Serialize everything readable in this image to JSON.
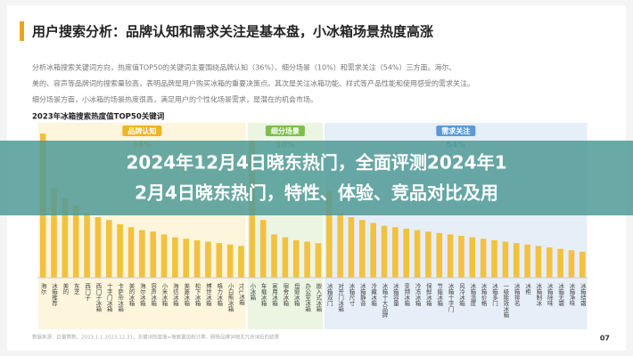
{
  "header": {
    "title": "用户搜索分析：品牌认知和需求关注是基本盘，小冰箱场景热度高涨"
  },
  "paragraph": {
    "lines": [
      "分析冰箱搜索关键词方向，热度值TOP50的关键词主要围绕品牌认知（36%）、细分场景（10%）和需求关注（54%）三方面。海尔、",
      "美的、容声等品牌词的搜索量较高，表明品牌是用户购买冰箱的重要决策点。其次是关注冰箱功能、样式等产品性能和使用感受的需求关注。",
      "细分场景方面，小冰箱的场景热度很高，满足用户的个性化场景需求，是潜在的机会市场。"
    ]
  },
  "chart_data": {
    "type": "bar",
    "title": "2023年冰箱搜索热度值TOP50关键词",
    "bar_color": "#f3c140",
    "groups": [
      {
        "name": "品牌认知",
        "value": 36,
        "value_label": "36%",
        "color": "#f0b429",
        "panel": "#fdf5dc",
        "categories": [
          "海尔",
          "冰箱推荐",
          "美的",
          "东芝",
          "西门子",
          "西门子冰箱",
          "十字门冰箱",
          "卡萨帝冰箱",
          "美的冰箱",
          "海尔冰箱",
          "容声冰箱",
          "小米冰箱",
          "海信冰箱",
          "美菱冰箱",
          "松下冰箱",
          "博世冰箱",
          "格力冰箱",
          "小白熊冰箱",
          "TCL冰箱"
        ],
        "values": [
          100,
          62,
          55,
          50,
          45,
          42,
          40,
          37,
          35,
          33,
          32,
          30,
          28,
          27,
          26,
          25,
          24,
          23,
          22
        ]
      },
      {
        "name": "细分场景",
        "value": 10,
        "value_label": "10%",
        "color": "#7cbf4a",
        "panel": "#ecf5e2",
        "categories": [
          "小冰箱",
          "车载冰箱",
          "家用冰箱",
          "宿舍冰箱",
          "母婴冰箱",
          "办公室冰箱",
          "嵌入式冰箱"
        ],
        "values": [
          95,
          40,
          30,
          28,
          26,
          25,
          24
        ]
      },
      {
        "name": "需求关注",
        "value": 54,
        "value_label": "54%",
        "color": "#5b9bd5",
        "panel": "#e6eff8",
        "categories": [
          "冰箱双门",
          "对开门冰箱",
          "冰箱尺寸",
          "冰箱静音",
          "冷藏冰箱",
          "冰箱十大品牌",
          "冰箱容量",
          "变频冰箱",
          "冷冻冰箱",
          "保鲜冰箱",
          "节能冰箱",
          "冰箱十字门",
          "风冷冰箱",
          "冰箱温度",
          "冰箱价格",
          "冰箱多门",
          "一级能效冰箱",
          "冰箱排名",
          "冰柜",
          "冰箱制冰",
          "冰箱除味",
          "冰箱无霜",
          "冰箱净味",
          "冰箱结霜"
        ],
        "values": [
          60,
          45,
          42,
          40,
          38,
          36,
          35,
          34,
          33,
          32,
          31,
          30,
          29,
          28,
          27,
          26,
          25,
          24,
          23,
          22,
          21,
          20,
          19,
          18
        ]
      }
    ],
    "ylim": [
      0,
      100
    ]
  },
  "banner": {
    "lines": [
      "2024年12月4日晓东热门，全面评测2024年1",
      "2月4日晓东热门，特性、体验、竞品对比及用"
    ]
  },
  "footer": {
    "source": "数据来源：巨量算数，2023.1.1-2023.12.31，关键词热度值=搜索量加权计算，删除品牌词相关冗余词后的结果",
    "page": "07"
  }
}
